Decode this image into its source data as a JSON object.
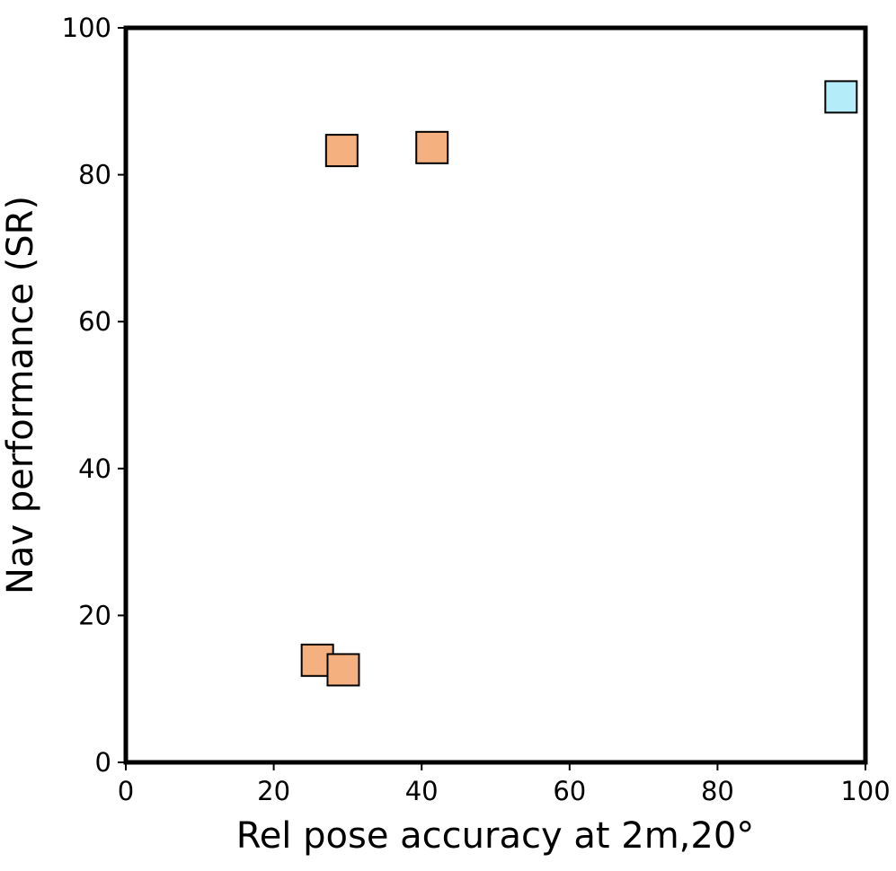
{
  "chart_data": {
    "type": "scatter",
    "xlabel": "Rel pose accuracy at 2m,20°",
    "ylabel": "Nav performance (SR)",
    "x": [
      29.2,
      41.4,
      96.7,
      25.9,
      29.4
    ],
    "y": [
      83.3,
      83.7,
      90.6,
      13.9,
      12.6
    ],
    "colors": [
      "#f5b07f",
      "#f5b07f",
      "#b5ecfa",
      "#f5b07f",
      "#f5b07f"
    ],
    "marker": "square",
    "xlim": [
      0,
      100
    ],
    "ylim": [
      0,
      100
    ],
    "xticks": [
      0,
      20,
      40,
      60,
      80,
      100
    ],
    "yticks": [
      0,
      20,
      40,
      60,
      80,
      100
    ]
  }
}
